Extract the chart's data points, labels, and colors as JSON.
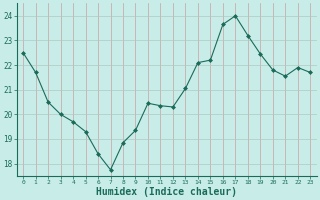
{
  "x": [
    0,
    1,
    2,
    3,
    4,
    5,
    6,
    7,
    8,
    9,
    10,
    11,
    12,
    13,
    14,
    15,
    16,
    17,
    18,
    19,
    20,
    21,
    22,
    23
  ],
  "y": [
    22.5,
    21.7,
    20.5,
    20.0,
    19.7,
    19.3,
    18.4,
    17.75,
    18.85,
    19.35,
    20.45,
    20.35,
    20.3,
    21.05,
    22.1,
    22.2,
    23.65,
    24.0,
    23.2,
    22.45,
    21.8,
    21.55,
    21.9,
    21.7
  ],
  "line_color": "#1a6b5a",
  "marker": "D",
  "marker_size": 2.0,
  "bg_color": "#c8ede8",
  "grid_color_v": "#c8a0a0",
  "grid_color_h": "#b0c8c4",
  "xlabel": "Humidex (Indice chaleur)",
  "xlabel_fontsize": 7,
  "yticks": [
    18,
    19,
    20,
    21,
    22,
    23,
    24
  ],
  "xticks": [
    0,
    1,
    2,
    3,
    4,
    5,
    6,
    7,
    8,
    9,
    10,
    11,
    12,
    13,
    14,
    15,
    16,
    17,
    18,
    19,
    20,
    21,
    22,
    23
  ],
  "ylim": [
    17.5,
    24.5
  ],
  "xlim": [
    -0.5,
    23.5
  ]
}
